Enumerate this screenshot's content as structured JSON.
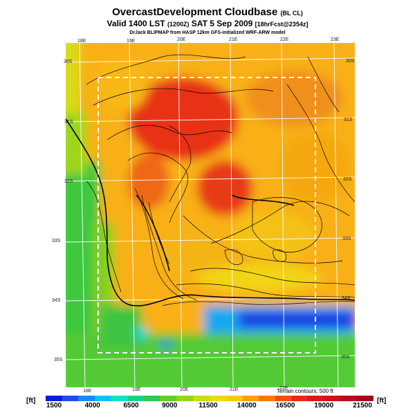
{
  "header": {
    "title": "OvercastDevelopment Cloudbase",
    "title_suffix": "(BL CL)",
    "valid_line": "Valid 1400 LST",
    "valid_zulu": "(1200Z)",
    "valid_date": "SAT 5 Sep 2009",
    "forecast_tag": "[18hrFcst@2354z]",
    "credit": "DrJack BLIPMAP from HASP 12km GFS-initialized WRF-ARW model"
  },
  "map": {
    "lon_labels_top": [
      "18E",
      "19E",
      "20E",
      "21E",
      "22E",
      "23E"
    ],
    "lon_labels_bottom": [
      "18E",
      "19E",
      "20E",
      "21E",
      "22E"
    ],
    "lat_labels_left": [
      "30S",
      "31S",
      "32S",
      "33S",
      "34S",
      "35S"
    ],
    "lat_labels_right": [
      "30S",
      "31S",
      "32S",
      "33S",
      "34S",
      "35S"
    ],
    "terrain_note": "Terrain contours: 500 ft"
  },
  "colorbar": {
    "unit_left": "[ft]",
    "unit_right": "[ft]",
    "ticks": [
      "1500",
      "4000",
      "6500",
      "9000",
      "11500",
      "14000",
      "16500",
      "19000",
      "21500"
    ],
    "colors": [
      "#0a1fd4",
      "#1f4de8",
      "#1a8cf0",
      "#14c0f0",
      "#16e0c4",
      "#1cd28a",
      "#2ec84a",
      "#64cc2a",
      "#98d41e",
      "#c8dc18",
      "#eadc14",
      "#f8c814",
      "#f8a010",
      "#f47a0e",
      "#ee5010",
      "#e62a14",
      "#d81a1a",
      "#c8141e",
      "#b40e20",
      "#a0081e"
    ]
  }
}
